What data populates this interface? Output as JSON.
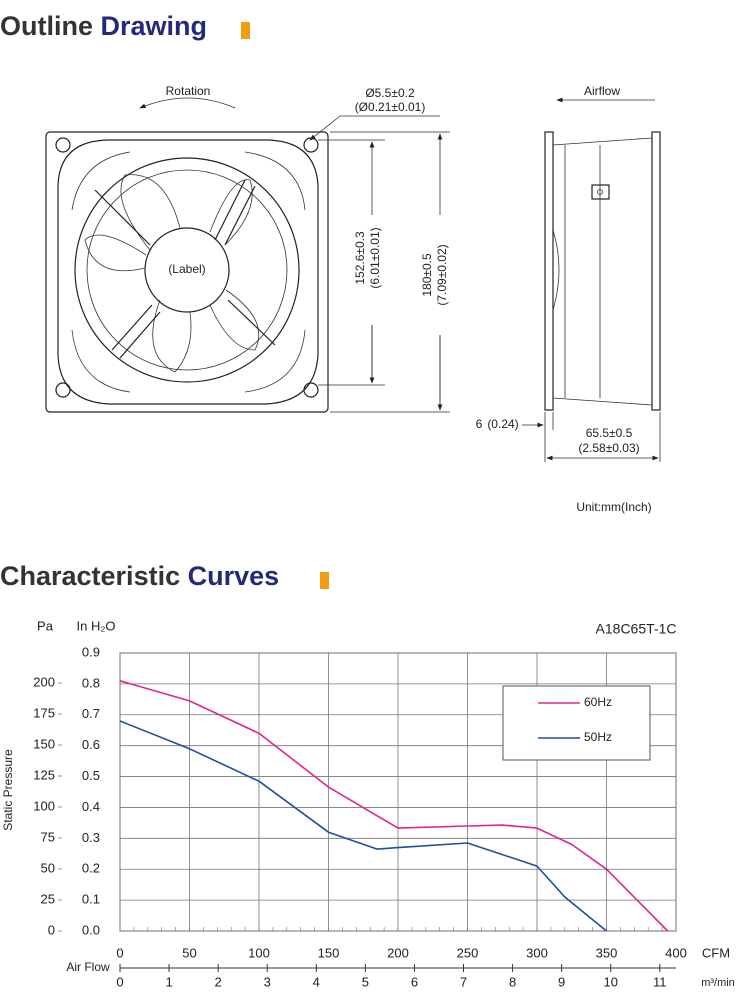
{
  "outline": {
    "heading": [
      "Outline",
      "Drawing"
    ],
    "rotation": "Rotation",
    "hole_mm": "Ø5.5±0.2",
    "hole_inch": "(Ø0.21±0.01)",
    "pitch_mm": "152.6±0.3",
    "pitch_inch": "(6.01±0.01)",
    "size_mm": "180±0.5",
    "size_inch": "(7.09±0.02)",
    "label": "(Label)",
    "airflow": "Airflow",
    "flange_mm": "6",
    "flange_inch": "(0.24)",
    "depth_mm": "65.5±0.5",
    "depth_inch": "(2.58±0.03)",
    "unit": "Unit:mm(Inch)"
  },
  "curves_heading": [
    "Characteristic",
    "Curves"
  ],
  "chart_data": {
    "type": "line",
    "title": "A18C65T-1C",
    "y_label": "Static Pressure",
    "y_unit": "In H₂O",
    "y2_unit": "Pa",
    "x_unit": "CFM",
    "x2_label": "Air Flow",
    "x2_unit": "m³/min",
    "xlim": [
      0,
      400
    ],
    "xticks": [
      0,
      50,
      100,
      150,
      200,
      250,
      300,
      350,
      400
    ],
    "x2lim": [
      0,
      11.33
    ],
    "x2ticks": [
      0,
      1,
      2,
      3,
      4,
      5,
      6,
      7,
      8,
      9,
      10,
      11
    ],
    "ylim": [
      0,
      0.9
    ],
    "yticks": [
      {
        "value": 0,
        "label": "0.0"
      },
      0.1,
      0.2,
      0.3,
      0.4,
      0.5,
      0.6,
      0.7,
      0.8,
      0.9
    ],
    "y2lim": [
      0,
      224.2
    ],
    "y2ticks": [
      0,
      25,
      50,
      75,
      100,
      125,
      150,
      175,
      200
    ],
    "grid": true,
    "series": [
      {
        "name": "60Hz",
        "color": "#e0268c",
        "x": [
          0,
          50,
          100,
          150,
          200,
          250,
          275,
          300,
          325,
          350,
          394
        ],
        "values": [
          0.81,
          0.745,
          0.64,
          0.466,
          0.333,
          0.34,
          0.343,
          0.333,
          0.28,
          0.2,
          0
        ]
      },
      {
        "name": "50Hz",
        "color": "#1f4e9c",
        "x": [
          0,
          50,
          100,
          150,
          185,
          200,
          250,
          300,
          320,
          350
        ],
        "values": [
          0.68,
          0.59,
          0.485,
          0.32,
          0.265,
          0.27,
          0.285,
          0.21,
          0.11,
          0
        ]
      }
    ]
  }
}
